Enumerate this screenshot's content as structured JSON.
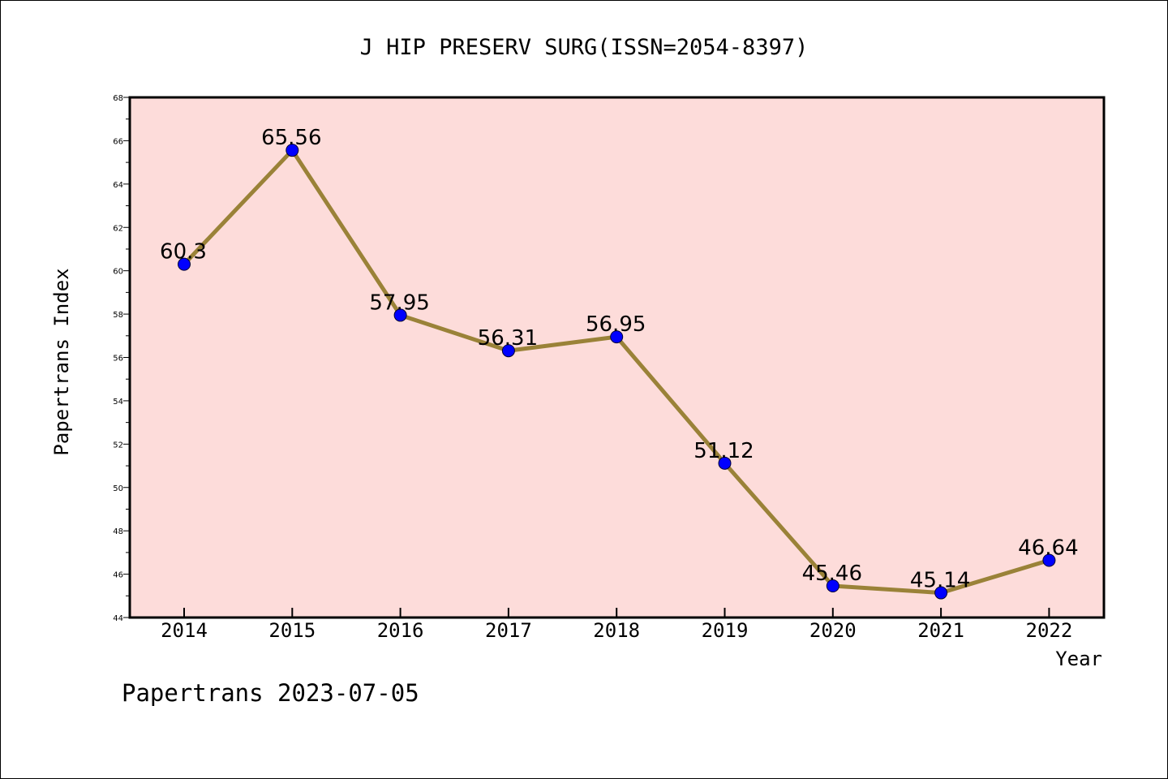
{
  "chart_data": {
    "type": "line",
    "title": "J HIP PRESERV SURG(ISSN=2054-8397)",
    "xlabel": "Year",
    "ylabel": "Papertrans Index",
    "categories": [
      "2014",
      "2015",
      "2016",
      "2017",
      "2018",
      "2019",
      "2020",
      "2021",
      "2022"
    ],
    "values": [
      60.3,
      65.56,
      57.95,
      56.31,
      56.95,
      51.12,
      45.46,
      45.14,
      46.64
    ],
    "data_labels": [
      "60.3",
      "65.56",
      "57.95",
      "56.31",
      "56.95",
      "51.12",
      "45.46",
      "45.14",
      "46.64"
    ],
    "ylim": [
      44,
      68
    ],
    "yticks": [
      "44",
      "46",
      "48",
      "50",
      "52",
      "54",
      "56",
      "58",
      "60",
      "62",
      "64",
      "66",
      "68"
    ],
    "grid": false,
    "colors": {
      "plot_background": "#FDDCDA",
      "line": "#9A8238",
      "marker": "#0000FF"
    }
  },
  "footer": "Papertrans 2023-07-05"
}
